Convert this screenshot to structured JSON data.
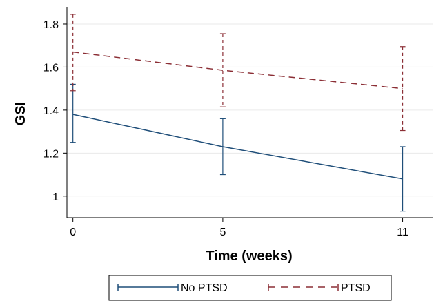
{
  "chart_data": {
    "type": "line",
    "title": "",
    "xlabel": "Time (weeks)",
    "ylabel": "GSI",
    "x": [
      0,
      5,
      11
    ],
    "x_ticks": [
      "0",
      "5",
      "11"
    ],
    "y_ticks": [
      "1",
      "1.2",
      "1.4",
      "1.6",
      "1.8"
    ],
    "y_tick_values": [
      1.0,
      1.2,
      1.4,
      1.6,
      1.8
    ],
    "xlim": [
      -0.2,
      12.0
    ],
    "ylim": [
      0.9,
      1.88
    ],
    "grid": true,
    "legend_position": "bottom",
    "series": [
      {
        "name": "No PTSD",
        "color": "#1f4e79",
        "dash": "solid",
        "values": [
          1.38,
          1.23,
          1.08
        ],
        "ci_low": [
          1.25,
          1.1,
          0.93
        ],
        "ci_high": [
          1.52,
          1.36,
          1.23
        ]
      },
      {
        "name": "PTSD",
        "color": "#8b2e35",
        "dash": "dashed",
        "values": [
          1.67,
          1.585,
          1.5
        ],
        "ci_low": [
          1.49,
          1.415,
          1.305
        ],
        "ci_high": [
          1.845,
          1.755,
          1.695
        ]
      }
    ]
  }
}
